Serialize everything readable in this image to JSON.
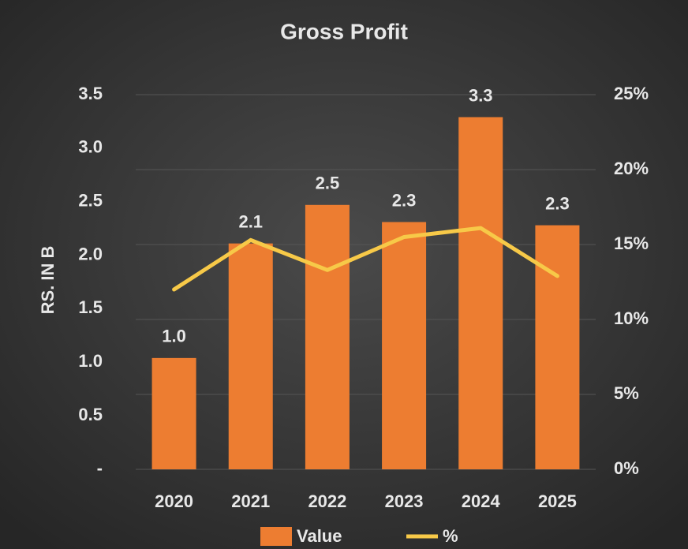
{
  "chart_data": {
    "type": "bar_line",
    "title": "Gross Profit",
    "y_axis_label": "RS. IN B",
    "categories": [
      "2020",
      "2021",
      "2022",
      "2023",
      "2024",
      "2025"
    ],
    "series": [
      {
        "name": "Value",
        "color": "#ed7d31",
        "type": "bar",
        "values": [
          1.04,
          2.11,
          2.47,
          2.31,
          3.29,
          2.28
        ],
        "value_labels": [
          "1.0",
          "2.1",
          "2.5",
          "2.3",
          "3.3",
          "2.3"
        ]
      },
      {
        "name": "%",
        "color": "#f7c948",
        "type": "line",
        "axis": "y2",
        "values": [
          12.0,
          15.3,
          13.3,
          15.5,
          16.1,
          12.9
        ]
      }
    ],
    "ylim": [
      0,
      3.5
    ],
    "yticks": [
      {
        "value": 0,
        "label": "-"
      },
      0.5,
      {
        "value": 1,
        "label": "1.0"
      },
      1.5,
      {
        "value": 2,
        "label": "2.0"
      },
      2.5,
      {
        "value": 3,
        "label": "3.0"
      },
      3.5
    ],
    "y2lim": [
      0,
      25
    ],
    "y2ticks": [
      {
        "value": 0,
        "label": "0%"
      },
      {
        "value": 5,
        "label": "5%"
      },
      {
        "value": 10,
        "label": "10%"
      },
      {
        "value": 15,
        "label": "15%"
      },
      {
        "value": 20,
        "label": "20%"
      },
      {
        "value": 25,
        "label": "25%"
      }
    ],
    "grid": true,
    "legend": "bottom"
  }
}
